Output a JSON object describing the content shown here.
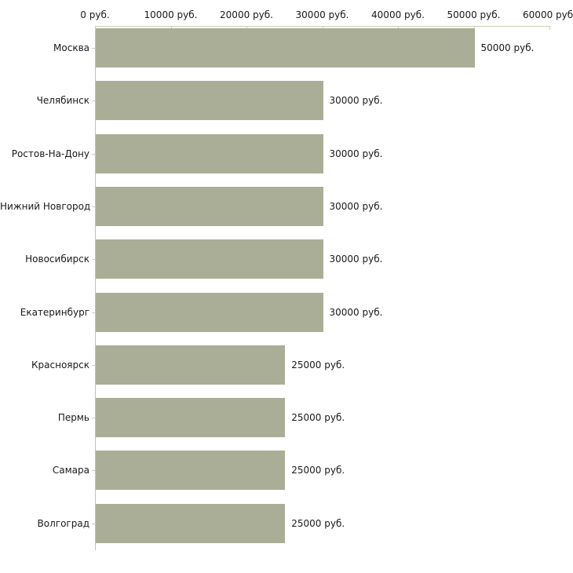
{
  "chart_data": {
    "type": "bar",
    "orientation": "horizontal",
    "title": "",
    "xlabel": "",
    "ylabel": "",
    "categories": [
      "Москва",
      "Челябинск",
      "Ростов-На-Дону",
      "Нижний Новгород",
      "Новосибирск",
      "Екатеринбург",
      "Красноярск",
      "Пермь",
      "Самара",
      "Волгоград"
    ],
    "values": [
      50000,
      30000,
      30000,
      30000,
      30000,
      30000,
      25000,
      25000,
      25000,
      25000
    ],
    "value_labels": [
      "50000 руб.",
      "30000 руб.",
      "30000 руб.",
      "30000 руб.",
      "30000 руб.",
      "30000 руб.",
      "25000 руб.",
      "25000 руб.",
      "25000 руб.",
      "25000 руб."
    ],
    "unit": "руб.",
    "x_ticks": [
      0,
      10000,
      20000,
      30000,
      40000,
      50000,
      60000
    ],
    "x_tick_labels": [
      "0 руб.",
      "10000 руб.",
      "20000 руб.",
      "30000 руб.",
      "40000 руб.",
      "50000 руб.",
      "60000 руб."
    ],
    "xlim": [
      0,
      60000
    ],
    "grid": false,
    "legend": "none",
    "colors": {
      "bar": "#abae96",
      "x_axis": "#d1ceb2",
      "y_axis": "#c0c0c0",
      "text": "#1a1a1a",
      "background": "#ffffff"
    }
  }
}
